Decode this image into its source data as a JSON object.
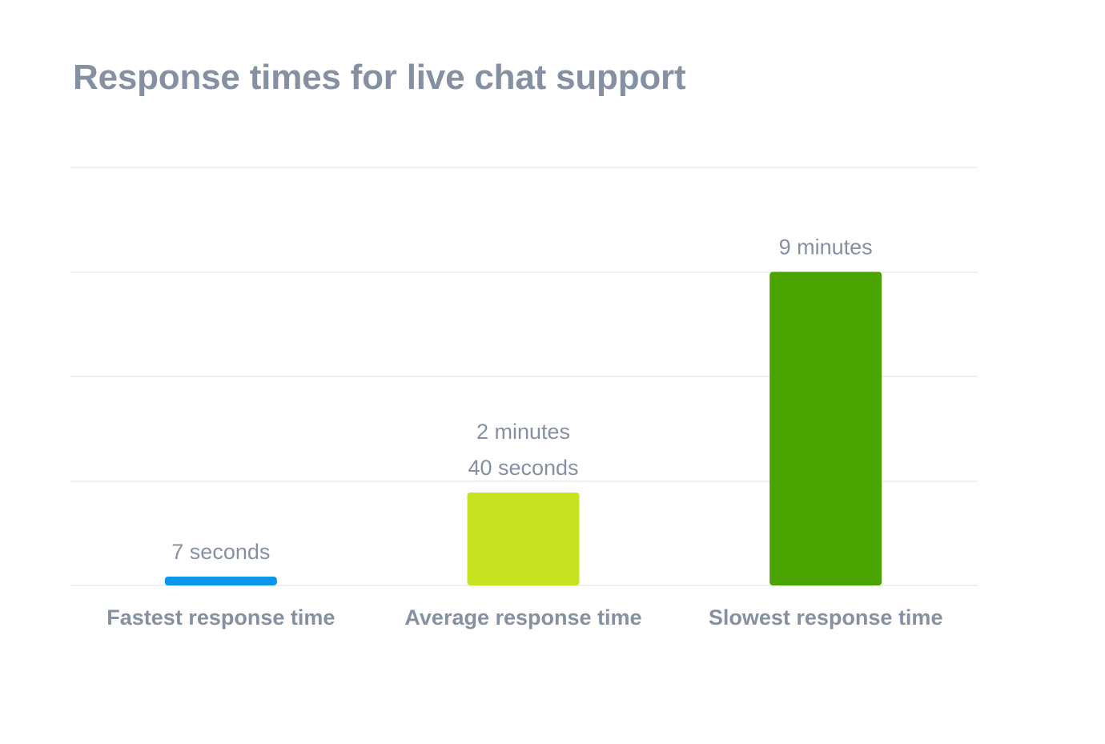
{
  "chart_data": {
    "type": "bar",
    "title": "Response times for live chat support",
    "categories": [
      "Fastest response time",
      "Average response time",
      "Slowest response time"
    ],
    "values": [
      0.1167,
      2.6667,
      9
    ],
    "value_unit": "minutes",
    "value_labels": [
      [
        "7 seconds"
      ],
      [
        "2 minutes",
        "40 seconds"
      ],
      [
        "9 minutes"
      ]
    ],
    "colors": [
      "#0a96ea",
      "#c6e221",
      "#4aa400"
    ],
    "ylim": [
      0,
      12
    ],
    "grid": true,
    "xlabel": "",
    "ylabel": ""
  }
}
